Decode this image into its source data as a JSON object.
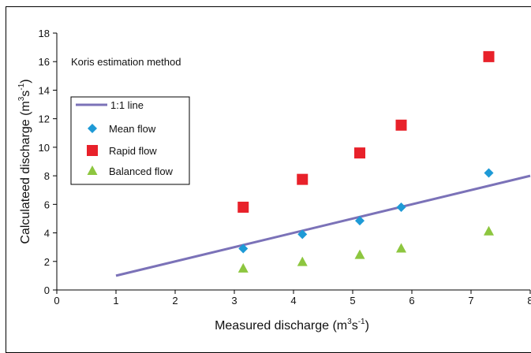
{
  "chart_data": {
    "type": "scatter",
    "annotation": "Koris estimation method",
    "xlabel": {
      "main": "Measured discharge (m",
      "sup1": "3",
      "mid": "s",
      "sup2": "-1",
      "tail": ")"
    },
    "ylabel": {
      "main": "Calculateed discharge (m",
      "sup1": "3",
      "mid": "s",
      "sup2": "-1",
      "tail": ")"
    },
    "xlim": [
      0,
      8
    ],
    "ylim": [
      0,
      18
    ],
    "x_ticks": [
      0,
      1,
      2,
      3,
      4,
      5,
      6,
      7,
      8
    ],
    "y_ticks": [
      0,
      2,
      4,
      6,
      8,
      10,
      12,
      14,
      16,
      18
    ],
    "grid": false,
    "legend_position": "upper-left",
    "series": [
      {
        "name": "1:1 line",
        "kind": "line",
        "color": "#7b72b8",
        "x": [
          1,
          8
        ],
        "y": [
          1,
          8
        ]
      },
      {
        "name": "Mean flow",
        "kind": "diamond",
        "color": "#1e9ad6",
        "x": [
          3.15,
          4.15,
          5.12,
          5.82,
          7.3
        ],
        "y": [
          2.9,
          3.9,
          4.85,
          5.8,
          8.2
        ]
      },
      {
        "name": "Rapid flow",
        "kind": "square",
        "color": "#e8212a",
        "x": [
          3.15,
          4.15,
          5.12,
          5.82,
          7.3
        ],
        "y": [
          5.8,
          7.75,
          9.6,
          11.55,
          16.35
        ]
      },
      {
        "name": "Balanced flow",
        "kind": "triangle",
        "color": "#8dc63f",
        "x": [
          3.15,
          4.15,
          5.12,
          5.82,
          7.3
        ],
        "y": [
          1.5,
          1.95,
          2.45,
          2.9,
          4.1
        ]
      }
    ]
  }
}
